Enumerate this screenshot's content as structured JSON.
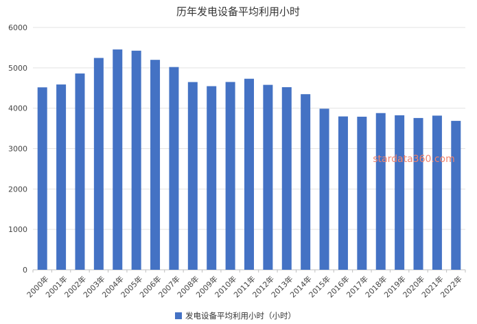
{
  "chart_data": {
    "type": "bar",
    "title": "历年发电设备平均利用小时",
    "categories": [
      "2000年",
      "2001年",
      "2002年",
      "2003年",
      "2004年",
      "2005年",
      "2006年",
      "2007年",
      "2008年",
      "2009年",
      "2010年",
      "2011年",
      "2012年",
      "2013年",
      "2014年",
      "2015年",
      "2016年",
      "2017年",
      "2018年",
      "2019年",
      "2020年",
      "2021年",
      "2022年"
    ],
    "series": [
      {
        "name": "发电设备平均利用小时（小时）",
        "values": [
          4517,
          4588,
          4860,
          5245,
          5455,
          5425,
          5198,
          5020,
          4648,
          4546,
          4650,
          4730,
          4579,
          4521,
          4348,
          3988,
          3797,
          3790,
          3880,
          3825,
          3758,
          3817,
          3687
        ],
        "color": "#4472C4"
      }
    ],
    "ylim": [
      0,
      6000
    ],
    "yticks": [
      0,
      1000,
      2000,
      3000,
      4000,
      5000,
      6000
    ],
    "grid": true,
    "legend_position": "bottom",
    "watermark": "stardata360.com",
    "watermark_color": "#f2836b"
  }
}
